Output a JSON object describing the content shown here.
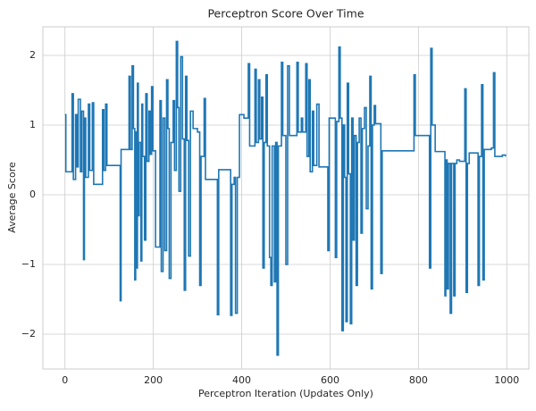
{
  "chart_data": {
    "type": "line",
    "title": "Perceptron Score Over Time",
    "x_label": "Perceptron Iteration (Updates Only)",
    "y_label": "Average Score",
    "drawstyle": "steps-post",
    "grid": true,
    "xlim": [
      -50,
      1050
    ],
    "ylim": [
      -2.5,
      2.41
    ],
    "xticks": [
      0,
      200,
      400,
      600,
      800,
      1000
    ],
    "yticks": [
      {
        "value": -2,
        "label": "−2"
      },
      {
        "value": -1,
        "label": "−1"
      },
      0,
      1,
      2
    ],
    "x": [
      0,
      2,
      16,
      19,
      24,
      27,
      30,
      35,
      38,
      42,
      44,
      47,
      53,
      56,
      62,
      65,
      85,
      88,
      92,
      95,
      125,
      127,
      145,
      148,
      152,
      155,
      158,
      160,
      162,
      164,
      166,
      168,
      172,
      174,
      176,
      180,
      183,
      186,
      190,
      193,
      196,
      199,
      205,
      215,
      218,
      222,
      226,
      230,
      233,
      236,
      240,
      245,
      248,
      252,
      255,
      258,
      262,
      266,
      270,
      273,
      276,
      280,
      284,
      290,
      300,
      305,
      308,
      315,
      318,
      345,
      348,
      375,
      378,
      383,
      386,
      390,
      395,
      405,
      415,
      418,
      430,
      433,
      438,
      441,
      445,
      448,
      451,
      455,
      458,
      463,
      466,
      469,
      474,
      477,
      480,
      483,
      490,
      493,
      500,
      504,
      508,
      525,
      528,
      535,
      538,
      545,
      548,
      552,
      555,
      560,
      563,
      570,
      575,
      595,
      598,
      612,
      615,
      620,
      623,
      627,
      630,
      633,
      636,
      639,
      642,
      646,
      649,
      652,
      655,
      659,
      662,
      666,
      670,
      673,
      678,
      682,
      686,
      690,
      693,
      696,
      700,
      703,
      715,
      718,
      790,
      793,
      825,
      828,
      831,
      838,
      860,
      862,
      865,
      868,
      872,
      875,
      880,
      883,
      887,
      893,
      905,
      908,
      911,
      915,
      935,
      938,
      943,
      946,
      949,
      965,
      970,
      973,
      990,
      997
    ],
    "series": [
      {
        "name": "Average Score",
        "color": "#1f77b4",
        "values": [
          1.15,
          0.33,
          1.45,
          0.22,
          1.15,
          0.4,
          1.37,
          0.33,
          1.2,
          -0.93,
          1.1,
          0.25,
          1.3,
          0.35,
          1.32,
          0.15,
          1.22,
          0.35,
          1.3,
          0.42,
          -1.52,
          0.65,
          1.7,
          0.65,
          1.85,
          0.95,
          -1.22,
          0.9,
          -1.05,
          1.6,
          -0.3,
          0.75,
          -0.95,
          1.3,
          0.55,
          -0.65,
          1.45,
          0.48,
          1.2,
          0.58,
          1.55,
          0.63,
          -0.75,
          1.35,
          -1.1,
          1.1,
          -0.8,
          1.65,
          0.95,
          -1.2,
          0.75,
          1.35,
          0.35,
          2.2,
          1.25,
          0.05,
          1.98,
          0.8,
          -1.37,
          1.7,
          0.78,
          -0.88,
          1.2,
          0.95,
          0.9,
          -1.3,
          0.55,
          1.38,
          0.22,
          -1.72,
          0.36,
          -1.73,
          0.15,
          0.25,
          -1.7,
          0.25,
          1.15,
          1.1,
          1.88,
          0.7,
          1.8,
          0.75,
          1.65,
          0.8,
          1.4,
          -1.05,
          0.75,
          1.72,
          0.7,
          -0.9,
          -1.3,
          0.7,
          -1.25,
          0.75,
          -2.3,
          0.7,
          1.9,
          0.85,
          -1.0,
          1.85,
          0.85,
          1.9,
          0.9,
          1.1,
          0.9,
          1.88,
          0.55,
          1.65,
          0.33,
          1.2,
          0.42,
          1.3,
          0.4,
          -0.8,
          1.1,
          -0.9,
          1.05,
          2.12,
          1.1,
          -1.95,
          1.0,
          0.25,
          -1.82,
          1.6,
          0.3,
          -1.85,
          1.1,
          -0.65,
          0.85,
          -1.3,
          0.75,
          1.1,
          -0.55,
          0.95,
          1.25,
          -0.2,
          0.7,
          1.7,
          -1.35,
          1.0,
          1.28,
          1.02,
          -1.13,
          0.63,
          1.72,
          0.85,
          -1.05,
          2.1,
          1.0,
          0.62,
          -1.45,
          0.5,
          -1.35,
          0.45,
          -1.7,
          0.45,
          -1.45,
          0.45,
          0.5,
          0.48,
          1.52,
          -1.4,
          0.45,
          0.6,
          -1.3,
          0.55,
          1.58,
          -1.22,
          0.65,
          0.67,
          1.75,
          0.55,
          0.57,
          0.55
        ]
      }
    ]
  }
}
